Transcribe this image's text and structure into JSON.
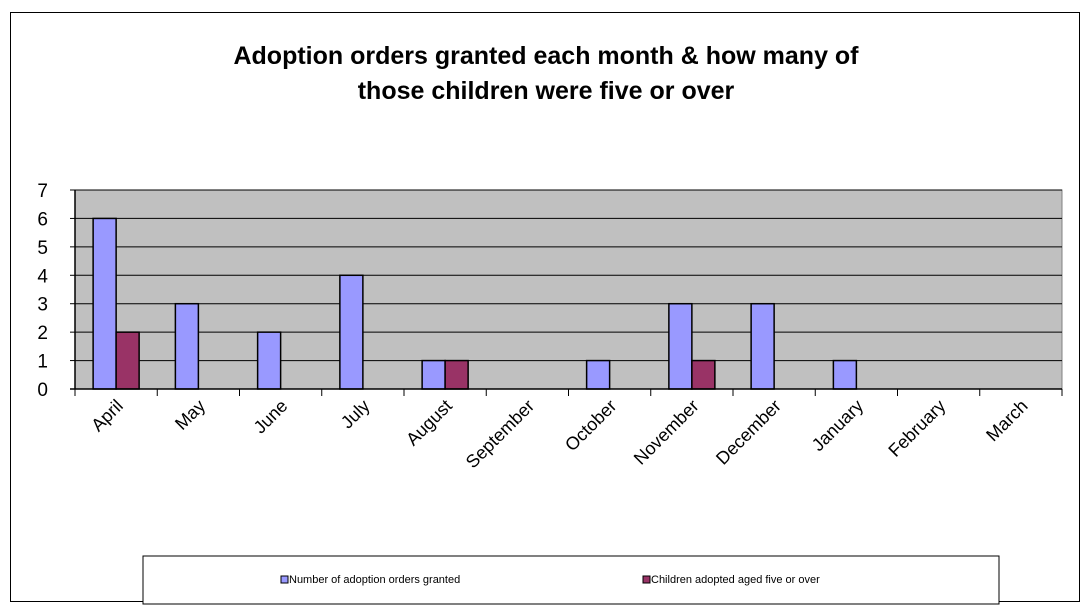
{
  "chart_data": {
    "type": "bar",
    "title_lines": [
      "Adoption orders granted each month  & how many of",
      "those children were five or over"
    ],
    "categories": [
      "April",
      "May",
      "June",
      "July",
      "August",
      "September",
      "October",
      "November",
      "December",
      "January",
      "February",
      "March"
    ],
    "series": [
      {
        "name": "Number of adoption orders granted",
        "color": "#9999ff",
        "values": [
          6,
          3,
          2,
          4,
          1,
          0,
          1,
          3,
          3,
          1,
          0,
          0
        ]
      },
      {
        "name": "Children adopted aged five or over",
        "color": "#993366",
        "values": [
          2,
          0,
          0,
          0,
          1,
          0,
          0,
          1,
          0,
          0,
          0,
          0
        ]
      }
    ],
    "y_ticks": [
      "0",
      "1",
      "2",
      "3",
      "4",
      "5",
      "6",
      "7"
    ],
    "ylim": [
      0,
      7
    ],
    "grid": true,
    "plot_background": "#c0c0c0",
    "legend_position": "bottom"
  }
}
